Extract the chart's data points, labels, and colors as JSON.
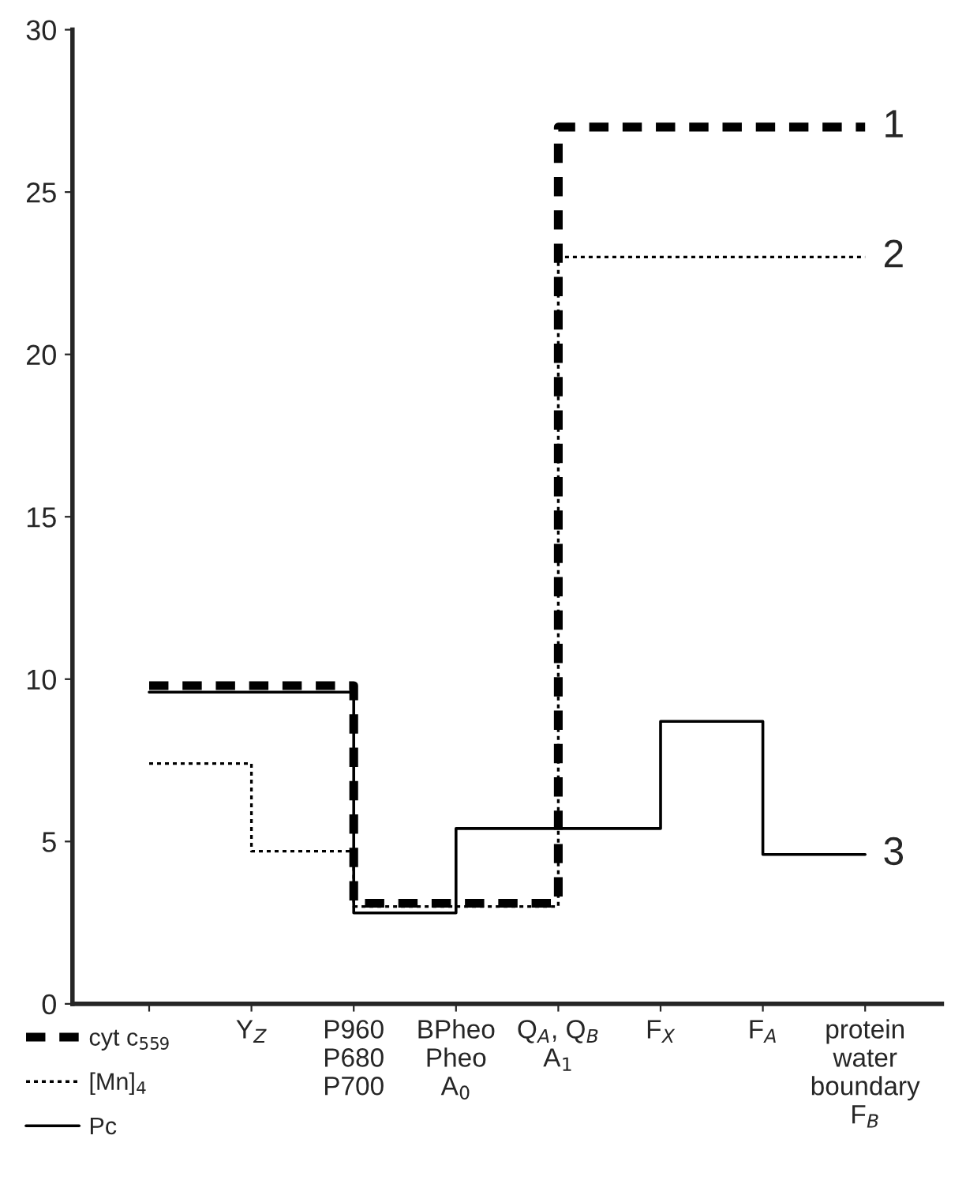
{
  "chart_data": {
    "type": "step",
    "categories": [
      null,
      "Y$_{Z}$",
      "P960\nP680\nP700",
      "BPheo\nPheo\nA$_{0}$",
      "Q$_{A}$, Q$_{B}$\nA$_{1}$",
      "F$_{X}$",
      "F$_{A}$",
      "protein\nwater\nboundary\nF$_{B}$"
    ],
    "series": [
      {
        "name": "cyt c$_{559}$",
        "color": "#000000",
        "line_style": "dashed",
        "values": [
          9.8,
          9.8,
          3.1,
          3.1,
          27,
          27,
          27,
          27
        ]
      },
      {
        "name": "[Mn]$_{4}$",
        "color": "#000000",
        "line_style": "dotted",
        "values": [
          7.4,
          4.7,
          3.0,
          3.0,
          23,
          23,
          23,
          23
        ]
      },
      {
        "name": "Pc",
        "color": "#000000",
        "line_style": "solid",
        "values": [
          9.6,
          9.6,
          2.8,
          5.4,
          5.4,
          8.7,
          4.6,
          4.6
        ]
      }
    ],
    "annotations": [
      "1",
      "2",
      "3"
    ],
    "ylim": [
      0,
      30
    ],
    "yticks": [
      0,
      5,
      10,
      15,
      20,
      25,
      30
    ],
    "grid": false,
    "legend": "bottom left"
  }
}
